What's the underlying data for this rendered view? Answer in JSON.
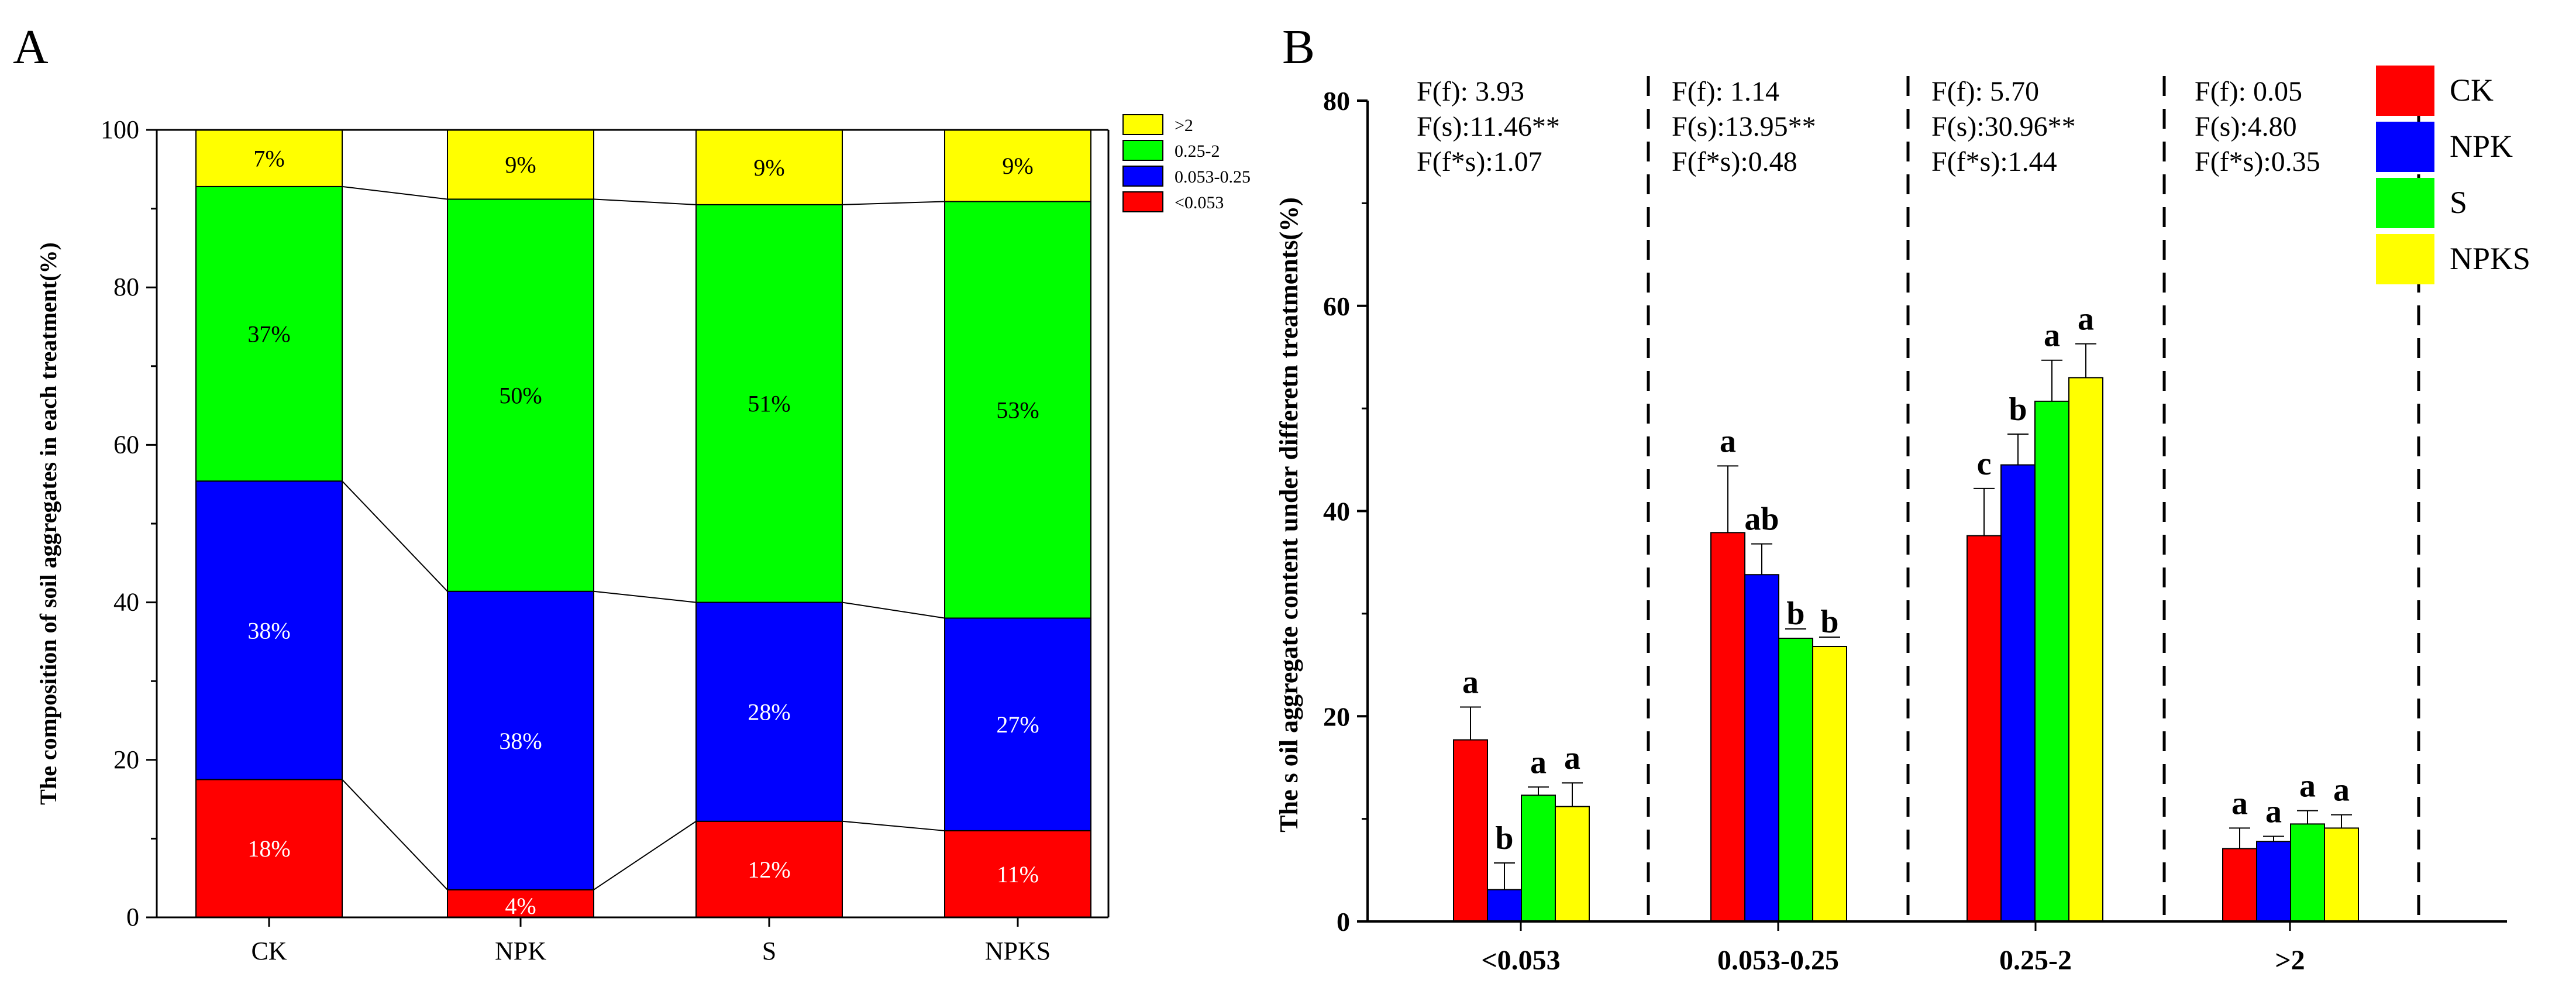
{
  "chart_data": [
    {
      "panel_label": "A",
      "type": "bar",
      "stacked": true,
      "categories": [
        "CK",
        "NPK",
        "S",
        "NPKS"
      ],
      "ylabel": "The composition of soil aggregates in each treatment(%)",
      "xlabel": "",
      "ylim": [
        0,
        100
      ],
      "yticks": [
        0,
        20,
        40,
        60,
        80,
        100
      ],
      "series": [
        {
          "name": "<0.053",
          "color": "#ff0000",
          "values": [
            17.5,
            3.5,
            12.2,
            11.0
          ],
          "labels": [
            "18%",
            "4%",
            "12%",
            "11%"
          ],
          "label_color": "#ffffff"
        },
        {
          "name": "0.053-0.25",
          "color": "#0000ff",
          "values": [
            37.9,
            37.9,
            27.8,
            27.0
          ],
          "labels": [
            "38%",
            "38%",
            "28%",
            "27%"
          ],
          "label_color": "#ffffff"
        },
        {
          "name": "0.25-2",
          "color": "#00ff00",
          "values": [
            37.4,
            49.8,
            50.5,
            52.9
          ],
          "labels": [
            "37%",
            "50%",
            "51%",
            "53%"
          ],
          "label_color": "#000000"
        },
        {
          "name": ">2",
          "color": "#ffff00",
          "values": [
            7.2,
            8.8,
            9.5,
            9.1
          ],
          "labels": [
            "7%",
            "9%",
            "9%",
            "9%"
          ],
          "label_color": "#000000"
        }
      ],
      "legend_order": [
        ">2",
        "0.25-2",
        "0.053-0.25",
        "<0.053"
      ],
      "legend_position": "top-right",
      "connector_lines": true
    },
    {
      "panel_label": "B",
      "type": "bar",
      "grouped": true,
      "categories": [
        "<0.053",
        "0.053-0.25",
        "0.25-2",
        ">2"
      ],
      "ylabel": "The s oil aggregate content under differetn treatments(%)",
      "xlabel": "",
      "ylim": [
        0,
        80
      ],
      "yticks": [
        0,
        20,
        40,
        60,
        80
      ],
      "series": [
        {
          "name": "CK",
          "color": "#ff0000",
          "values": [
            17.7,
            37.9,
            37.6,
            7.1
          ],
          "errors": [
            3.2,
            6.5,
            4.6,
            2.0
          ],
          "letters": [
            "a",
            "a",
            "c",
            "a"
          ]
        },
        {
          "name": "NPK",
          "color": "#0000ff",
          "values": [
            3.1,
            33.8,
            44.5,
            7.8
          ],
          "errors": [
            2.6,
            3.0,
            3.0,
            0.5
          ],
          "letters": [
            "b",
            "ab",
            "b",
            "a"
          ]
        },
        {
          "name": "S",
          "color": "#00ff00",
          "values": [
            12.3,
            27.6,
            50.7,
            9.5
          ],
          "errors": [
            0.8,
            0.0,
            4.0,
            1.3
          ],
          "letters": [
            "a",
            "b",
            "a",
            "a"
          ]
        },
        {
          "name": "NPKS",
          "color": "#ffff00",
          "values": [
            11.2,
            26.8,
            53.0,
            9.1
          ],
          "errors": [
            2.3,
            0.0,
            3.3,
            1.3
          ],
          "letters": [
            "a",
            "b",
            "a",
            "a"
          ]
        }
      ],
      "stats": [
        [
          "F(f): 3.93",
          "F(s):11.46**",
          "F(f*s):1.07"
        ],
        [
          "F(f): 1.14",
          "F(s):13.95**",
          "F(f*s):0.48"
        ],
        [
          "F(f): 5.70",
          "F(s):30.96**",
          "F(f*s):1.44"
        ],
        [
          "F(f): 0.05",
          "F(s):4.80",
          "F(f*s):0.35"
        ]
      ],
      "legend_position": "top-right",
      "group_separators": "dashed"
    }
  ]
}
